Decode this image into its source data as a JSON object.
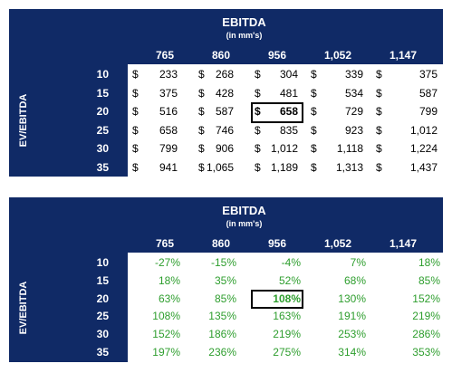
{
  "table1": {
    "title": "EBITDA",
    "subtitle": "(in mm's)",
    "row_axis_label": "EV/EBITDA",
    "columns": [
      "765",
      "860",
      "956",
      "1,052",
      "1,147"
    ],
    "rows": [
      {
        "label": "10",
        "values": [
          "233",
          "268",
          "304",
          "339",
          "375"
        ]
      },
      {
        "label": "15",
        "values": [
          "375",
          "428",
          "481",
          "534",
          "587"
        ]
      },
      {
        "label": "20",
        "values": [
          "516",
          "587",
          "658",
          "729",
          "799"
        ]
      },
      {
        "label": "25",
        "values": [
          "658",
          "746",
          "835",
          "923",
          "1,012"
        ]
      },
      {
        "label": "30",
        "values": [
          "799",
          "906",
          "1,012",
          "1,118",
          "1,224"
        ]
      },
      {
        "label": "35",
        "values": [
          "941",
          "1,065",
          "1,189",
          "1,313",
          "1,437"
        ]
      }
    ],
    "currency_symbol": "$",
    "highlight": {
      "row": 2,
      "col": 2
    }
  },
  "table2": {
    "title": "EBITDA",
    "subtitle": "(in mm's)",
    "row_axis_label": "EV/EBITDA",
    "columns": [
      "765",
      "860",
      "956",
      "1,052",
      "1,147"
    ],
    "rows": [
      {
        "label": "10",
        "values": [
          "-27%",
          "-15%",
          "-4%",
          "7%",
          "18%"
        ]
      },
      {
        "label": "15",
        "values": [
          "18%",
          "35%",
          "52%",
          "68%",
          "85%"
        ]
      },
      {
        "label": "20",
        "values": [
          "63%",
          "85%",
          "108%",
          "130%",
          "152%"
        ]
      },
      {
        "label": "25",
        "values": [
          "108%",
          "135%",
          "163%",
          "191%",
          "219%"
        ]
      },
      {
        "label": "30",
        "values": [
          "152%",
          "186%",
          "219%",
          "253%",
          "286%"
        ]
      },
      {
        "label": "35",
        "values": [
          "197%",
          "236%",
          "275%",
          "314%",
          "353%"
        ]
      }
    ],
    "highlight": {
      "row": 2,
      "col": 2
    }
  },
  "colors": {
    "navy": "#102a66",
    "green": "#2e9e2e",
    "text": "#000000"
  }
}
